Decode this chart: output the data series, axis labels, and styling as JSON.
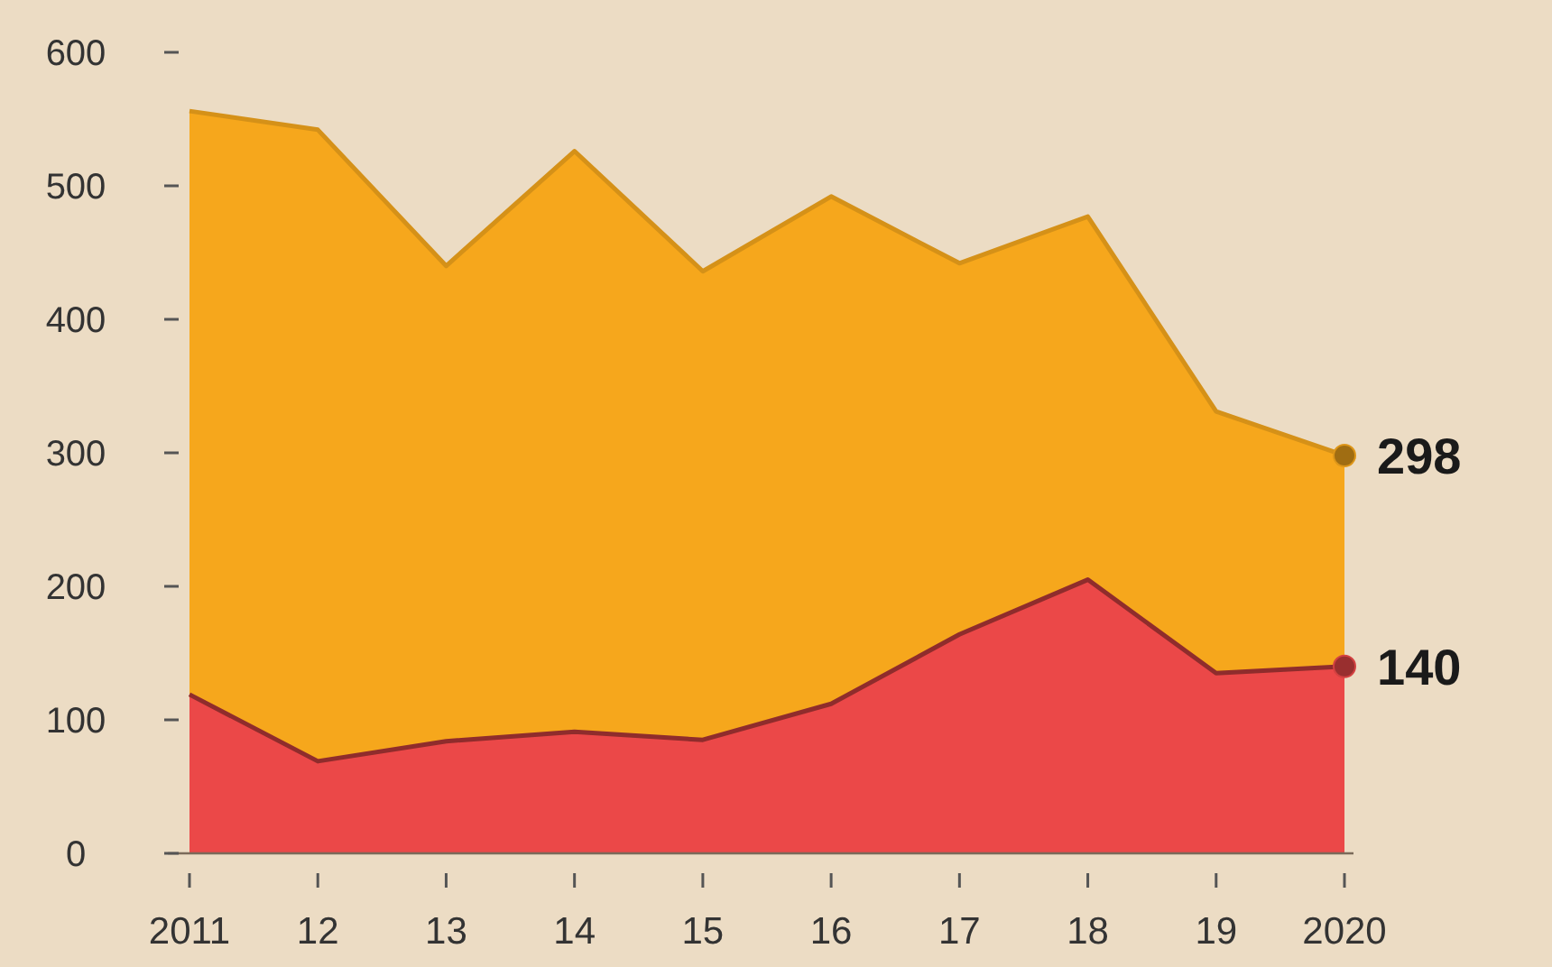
{
  "chart_data": {
    "type": "area",
    "categories": [
      "2011",
      "12",
      "13",
      "14",
      "15",
      "16",
      "17",
      "18",
      "19",
      "2020"
    ],
    "series": [
      {
        "color": "#f6a71c",
        "values": [
          556,
          542,
          440,
          526,
          436,
          492,
          442,
          477,
          331,
          298
        ],
        "value_labels": [
          null,
          null,
          null,
          null,
          null,
          null,
          null,
          null,
          null,
          "298"
        ]
      },
      {
        "color": "#eb4848",
        "values": [
          119,
          69,
          84,
          91,
          85,
          112,
          164,
          205,
          135,
          140
        ],
        "value_labels": [
          null,
          null,
          null,
          null,
          null,
          null,
          null,
          null,
          null,
          "140"
        ]
      }
    ],
    "ylim": [
      0,
      600
    ],
    "yticks": [
      0,
      100,
      200,
      300,
      400,
      500,
      600
    ],
    "grid": false
  }
}
